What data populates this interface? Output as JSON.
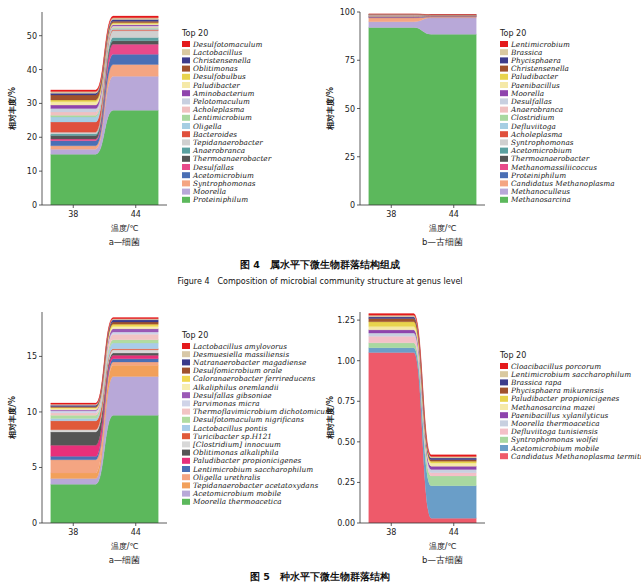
{
  "chart_data": [
    {
      "type": "area",
      "stacked": true,
      "grid": false,
      "legend": "right",
      "subtitle": "a—细菌",
      "x_label": "温度/℃",
      "y_label": "相对丰度/%",
      "legend_title": "Top 20",
      "categories": [
        "38",
        "44"
      ],
      "ylim": [
        0,
        57
      ],
      "yticks": [
        0,
        10,
        20,
        30,
        40,
        50
      ],
      "series": [
        {
          "name": "Desulfotomaculum",
          "color": "#e41a1c",
          "values": [
            0.5,
            0.5
          ]
        },
        {
          "name": "Lactobacillus",
          "color": "#d9c9a0",
          "values": [
            0.5,
            0.5
          ]
        },
        {
          "name": "Christensenella",
          "color": "#3c3c8c",
          "values": [
            0.5,
            0.5
          ]
        },
        {
          "name": "Oblitimonas",
          "color": "#a0522d",
          "values": [
            1.5,
            0.5
          ]
        },
        {
          "name": "Desulfobulbus",
          "color": "#e8d44d",
          "values": [
            0.5,
            0.3
          ]
        },
        {
          "name": "Paludibacter",
          "color": "#f5e9a8",
          "values": [
            1,
            0.3
          ]
        },
        {
          "name": "Aminobacterium",
          "color": "#8e44ad",
          "values": [
            1,
            0.3
          ]
        },
        {
          "name": "Pelotomaculum",
          "color": "#c8d0e0",
          "values": [
            1,
            0.2
          ]
        },
        {
          "name": "Acholeplasma",
          "color": "#f0c0c0",
          "values": [
            1,
            0.3
          ]
        },
        {
          "name": "Lentimicrobium",
          "color": "#a8d8a0",
          "values": [
            0.5,
            0.3
          ]
        },
        {
          "name": "Oligella",
          "color": "#a6cee3",
          "values": [
            1.5,
            0.3
          ]
        },
        {
          "name": "Bacteroides",
          "color": "#e0503c",
          "values": [
            3,
            0.3
          ]
        },
        {
          "name": "Tepidanaerobacter",
          "color": "#d0d0d0",
          "values": [
            0.5,
            2
          ]
        },
        {
          "name": "Anaerobranca",
          "color": "#5aa0a0",
          "values": [
            0.5,
            1
          ]
        },
        {
          "name": "Thermoanaerobacter",
          "color": "#555555",
          "values": [
            1,
            1
          ]
        },
        {
          "name": "Desulfallas",
          "color": "#e84a8a",
          "values": [
            0.5,
            3
          ]
        },
        {
          "name": "Acetomicrobium",
          "color": "#4a6fb5",
          "values": [
            1.5,
            3
          ]
        },
        {
          "name": "Syntrophomonas",
          "color": "#f4a582",
          "values": [
            1,
            3.5
          ]
        },
        {
          "name": "Moorella",
          "color": "#b8a8d8",
          "values": [
            1.5,
            10
          ]
        },
        {
          "name": "Proteiniphilum",
          "color": "#5cb85c",
          "values": [
            15,
            28
          ]
        }
      ]
    },
    {
      "type": "area",
      "stacked": true,
      "grid": false,
      "legend": "right",
      "subtitle": "b—古细菌",
      "x_label": "温度/℃",
      "y_label": "相对丰度/%",
      "legend_title": "Top 20",
      "categories": [
        "38",
        "44"
      ],
      "ylim": [
        0,
        100
      ],
      "yticks": [
        0,
        25,
        50,
        75,
        100
      ],
      "series": [
        {
          "name": "Lentimicrobium",
          "color": "#e41a1c",
          "values": [
            0.1,
            0.05
          ]
        },
        {
          "name": "Brassica",
          "color": "#d9c9a0",
          "values": [
            0.1,
            0.05
          ]
        },
        {
          "name": "Phycisphaera",
          "color": "#3c3c8c",
          "values": [
            0.1,
            0.05
          ]
        },
        {
          "name": "Christensenella",
          "color": "#a0522d",
          "values": [
            0.1,
            0.05
          ]
        },
        {
          "name": "Paludibacter",
          "color": "#e8d44d",
          "values": [
            0.1,
            0.05
          ]
        },
        {
          "name": "Paenibacillus",
          "color": "#f5e9a8",
          "values": [
            0.1,
            0.05
          ]
        },
        {
          "name": "Moorella",
          "color": "#8e44ad",
          "values": [
            0.1,
            0.05
          ]
        },
        {
          "name": "Desulfallas",
          "color": "#c8d0e0",
          "values": [
            0.1,
            0.05
          ]
        },
        {
          "name": "Anaerobranca",
          "color": "#f0c0c0",
          "values": [
            0.1,
            0.05
          ]
        },
        {
          "name": "Clostridium",
          "color": "#a8d8a0",
          "values": [
            0.1,
            0.05
          ]
        },
        {
          "name": "Defluviitoga",
          "color": "#a6cee3",
          "values": [
            0.1,
            0.05
          ]
        },
        {
          "name": "Acholeplasma",
          "color": "#e0503c",
          "values": [
            0.1,
            0.05
          ]
        },
        {
          "name": "Syntrophomonas",
          "color": "#d0d0d0",
          "values": [
            0.1,
            0.05
          ]
        },
        {
          "name": "Acetomicrobium",
          "color": "#5aa0a0",
          "values": [
            0.1,
            0.05
          ]
        },
        {
          "name": "Thermoanaerobacter",
          "color": "#555555",
          "values": [
            0.1,
            0.05
          ]
        },
        {
          "name": "Methanomassiliicoccus",
          "color": "#e84a8a",
          "values": [
            0.2,
            0.3
          ]
        },
        {
          "name": "Proteiniphilum",
          "color": "#4a6fb5",
          "values": [
            0.3,
            0.2
          ]
        },
        {
          "name": "Candidatus Methanoplasma",
          "color": "#f4a582",
          "values": [
            2,
            0.4
          ]
        },
        {
          "name": "Methanoculleus",
          "color": "#b8a8d8",
          "values": [
            3,
            8.5
          ]
        },
        {
          "name": "Methanosarcina",
          "color": "#5cb85c",
          "values": [
            92,
            88.5
          ]
        }
      ]
    },
    {
      "type": "area",
      "stacked": true,
      "grid": false,
      "legend": "right",
      "subtitle": "a—细菌",
      "x_label": "温度/℃",
      "y_label": "相对丰度/%",
      "legend_title": "Top 20",
      "categories": [
        "38",
        "44"
      ],
      "ylim": [
        0,
        19
      ],
      "yticks": [
        0,
        5,
        10,
        15
      ],
      "series": [
        {
          "name": "Lactobacillus amylovorus",
          "color": "#e41a1c",
          "values": [
            0.1,
            0.1
          ]
        },
        {
          "name": "Desmuesiella massiliensis",
          "color": "#d8c8a8",
          "values": [
            0.1,
            0.1
          ]
        },
        {
          "name": "Natranaerobacter magadiense",
          "color": "#3a3a8a",
          "values": [
            0.1,
            0.2
          ]
        },
        {
          "name": "Desulfomicrobium orale",
          "color": "#a0522d",
          "values": [
            0.1,
            0.2
          ]
        },
        {
          "name": "Caloranaerobacter ferrireducens",
          "color": "#f0d850",
          "values": [
            0.1,
            0.2
          ]
        },
        {
          "name": "Alkaliphilus oremlandii",
          "color": "#f7eeb0",
          "values": [
            0.1,
            0.2
          ]
        },
        {
          "name": "Desulfallas gibsoniae",
          "color": "#9b59b6",
          "values": [
            0.1,
            0.3
          ]
        },
        {
          "name": "Parvimonas micra",
          "color": "#d0d4e8",
          "values": [
            0.2,
            0.2
          ]
        },
        {
          "name": "Thermoflavimicrobium dichotomicum",
          "color": "#f2c4c4",
          "values": [
            0.2,
            0.5
          ]
        },
        {
          "name": "Desulfotomaculum nigrificans",
          "color": "#b0dca0",
          "values": [
            0.3,
            0.3
          ]
        },
        {
          "name": "Lactobacillus pontis",
          "color": "#a8cce8",
          "values": [
            0.2,
            0.5
          ]
        },
        {
          "name": "Turicibacter sp.H121",
          "color": "#e05a3a",
          "values": [
            0.8,
            0.1
          ]
        },
        {
          "name": "[Clostridium] innocuum",
          "color": "#d8d8d8",
          "values": [
            0.2,
            0.3
          ]
        },
        {
          "name": "Oblitimonas alkaliphila",
          "color": "#555555",
          "values": [
            1.2,
            0.2
          ]
        },
        {
          "name": "Paludibacter propionicigenes",
          "color": "#e8307a",
          "values": [
            1,
            0.3
          ]
        },
        {
          "name": "Lentimicrobium saccharophilum",
          "color": "#4a6fb5",
          "values": [
            0.3,
            0.3
          ]
        },
        {
          "name": "Oligella urethralis",
          "color": "#f4a582",
          "values": [
            1.2,
            0.3
          ]
        },
        {
          "name": "Tepidanaerobacter acetatoxydans",
          "color": "#f2a05a",
          "values": [
            0.5,
            1
          ]
        },
        {
          "name": "Acetomicrobium mobile",
          "color": "#b8a8d8",
          "values": [
            0.5,
            3.5
          ]
        },
        {
          "name": "Moorella thermoacetica",
          "color": "#5cb85c",
          "values": [
            3.5,
            9.7
          ]
        }
      ]
    },
    {
      "type": "area",
      "stacked": true,
      "grid": false,
      "legend": "right",
      "subtitle": "b—古细菌",
      "x_label": "温度/℃",
      "y_label": "相对丰度/%",
      "legend_title": "Top 20",
      "categories": [
        "38",
        "44"
      ],
      "ylim": [
        0,
        1.3
      ],
      "yticks": [
        {
          "value": 0,
          "label": "0.00"
        },
        {
          "value": 0.25,
          "label": "0.25"
        },
        {
          "value": 0.5,
          "label": "0.50"
        },
        {
          "value": 0.75,
          "label": "0.75"
        },
        {
          "value": 1,
          "label": "1.00"
        },
        {
          "value": 1.25,
          "label": "1.25"
        }
      ],
      "series": [
        {
          "name": "Cloacibacillus porcorum",
          "color": "#e41a1c",
          "values": [
            0.01,
            0.01
          ]
        },
        {
          "name": "Lentimicrobium saccharophilum",
          "color": "#d9c9a0",
          "values": [
            0.01,
            0.01
          ]
        },
        {
          "name": "Brassica rapa",
          "color": "#3c3c8c",
          "values": [
            0.01,
            0.01
          ]
        },
        {
          "name": "Phycisphaera mikurensis",
          "color": "#a0522d",
          "values": [
            0.02,
            0.01
          ]
        },
        {
          "name": "Paludibacter propionicigenes",
          "color": "#e8d44d",
          "values": [
            0.03,
            0.01
          ]
        },
        {
          "name": "Methanosarcina mazei",
          "color": "#f5e9a8",
          "values": [
            0.02,
            0.02
          ]
        },
        {
          "name": "Paenibacillus xylanilyticus",
          "color": "#8e44ad",
          "values": [
            0.02,
            0.02
          ]
        },
        {
          "name": "Moorella thermoacetica",
          "color": "#c8d0e0",
          "values": [
            0.02,
            0.02
          ]
        },
        {
          "name": "Defluviitoga tunisiensis",
          "color": "#f4c0c8",
          "values": [
            0.04,
            0.02
          ]
        },
        {
          "name": "Syntrophomonas wolfei",
          "color": "#a8d8a0",
          "values": [
            0.03,
            0.06
          ]
        },
        {
          "name": "Acetomicrobium mobile",
          "color": "#6a9ec8",
          "values": [
            0.03,
            0.2
          ]
        },
        {
          "name": "Candidatus Methanoplasma termitum",
          "color": "#ee5a6a",
          "values": [
            1.05,
            0.03
          ]
        }
      ]
    }
  ],
  "figure_captions": [
    "图 4　属水平下微生物群落结构组成",
    "Figure 4　Composition of microbial community structure at genus level",
    "图 5　种水平下微生物群落结构"
  ]
}
